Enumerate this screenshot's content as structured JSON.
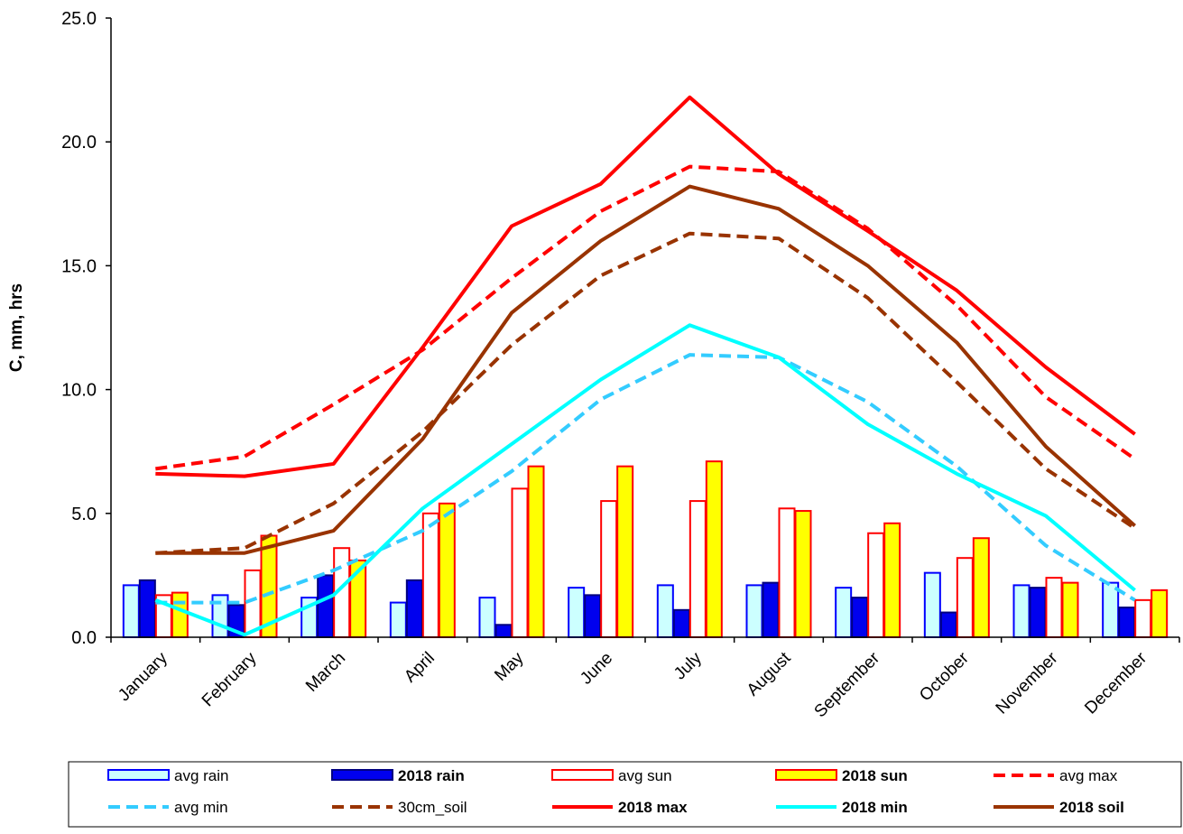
{
  "chart_data": {
    "type": "bar",
    "ylabel": "C, mm, hrs",
    "ylim": [
      0,
      25
    ],
    "yticks": [
      "0.0",
      "5.0",
      "10.0",
      "15.0",
      "20.0",
      "25.0"
    ],
    "grid": false,
    "legend_position": "bottom",
    "categories": [
      "January",
      "February",
      "March",
      "April",
      "May",
      "June",
      "July",
      "August",
      "September",
      "October",
      "November",
      "December"
    ],
    "bar_series": [
      {
        "name": "avg rain",
        "bold": false,
        "fill": "#ccffff",
        "stroke": "#0000ff",
        "values": [
          2.1,
          1.7,
          1.6,
          1.4,
          1.6,
          2.0,
          2.1,
          2.1,
          2.0,
          2.6,
          2.1,
          2.2
        ]
      },
      {
        "name": "2018 rain",
        "bold": true,
        "fill": "#0000ee",
        "stroke": "#000080",
        "values": [
          2.3,
          1.3,
          2.5,
          2.3,
          0.5,
          1.7,
          1.1,
          2.2,
          1.6,
          1.0,
          2.0,
          1.2
        ]
      },
      {
        "name": "avg sun",
        "bold": false,
        "fill": "#ffffff",
        "stroke": "#ff0000",
        "values": [
          1.7,
          2.7,
          3.6,
          5.0,
          6.0,
          5.5,
          5.5,
          5.2,
          4.2,
          3.2,
          2.4,
          1.5
        ]
      },
      {
        "name": "2018 sun",
        "bold": true,
        "fill": "#ffff00",
        "stroke": "#ff0000",
        "values": [
          1.8,
          4.1,
          3.1,
          5.4,
          6.9,
          6.9,
          7.1,
          5.1,
          4.6,
          4.0,
          2.2,
          1.9
        ]
      }
    ],
    "line_series": [
      {
        "name": "avg max",
        "bold": false,
        "color": "#ff0000",
        "dashed": true,
        "values": [
          6.8,
          7.3,
          9.4,
          11.6,
          14.5,
          17.2,
          19.0,
          18.8,
          16.5,
          13.4,
          9.7,
          7.2
        ]
      },
      {
        "name": "avg min",
        "bold": false,
        "color": "#33ccff",
        "dashed": true,
        "values": [
          1.4,
          1.4,
          2.7,
          4.3,
          6.7,
          9.6,
          11.4,
          11.3,
          9.5,
          6.9,
          3.7,
          1.5
        ]
      },
      {
        "name": "30cm_soil",
        "bold": false,
        "color": "#993300",
        "dashed": true,
        "values": [
          3.4,
          3.6,
          5.4,
          8.3,
          11.8,
          14.6,
          16.3,
          16.1,
          13.7,
          10.3,
          6.8,
          4.4
        ]
      },
      {
        "name": "2018 max",
        "bold": true,
        "color": "#ff0000",
        "dashed": false,
        "values": [
          6.6,
          6.5,
          7.0,
          11.7,
          16.6,
          18.3,
          21.8,
          18.7,
          16.4,
          14.0,
          10.9,
          8.2
        ]
      },
      {
        "name": "2018 min",
        "bold": true,
        "color": "#00ffff",
        "dashed": false,
        "values": [
          1.5,
          0.1,
          1.7,
          5.2,
          7.8,
          10.4,
          12.6,
          11.3,
          8.6,
          6.6,
          4.9,
          1.9
        ]
      },
      {
        "name": "2018 soil",
        "bold": true,
        "color": "#993300",
        "dashed": false,
        "values": [
          3.4,
          3.4,
          4.3,
          8.0,
          13.1,
          16.0,
          18.2,
          17.3,
          15.0,
          11.9,
          7.7,
          4.5
        ]
      }
    ],
    "legend_order": [
      "avg rain",
      "2018 rain",
      "avg sun",
      "2018 sun",
      "avg max",
      "avg min",
      "30cm_soil",
      "2018 max",
      "2018 min",
      "2018 soil"
    ]
  }
}
